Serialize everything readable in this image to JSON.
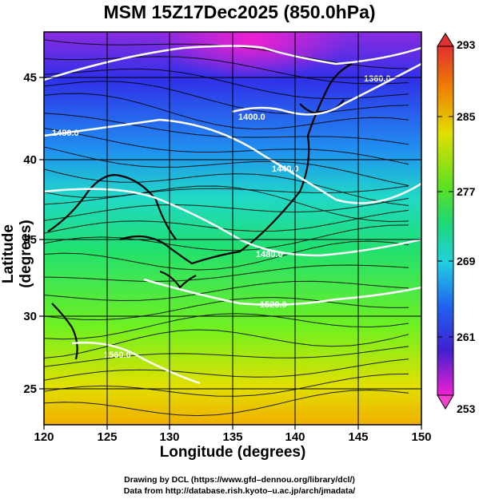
{
  "map": {
    "title": "MSM 15Z17Dec2025 (850.0hPa)",
    "xlabel": "Longitude (degrees)",
    "ylabel": "Latitude  (degrees)",
    "x_ticks": [
      "120",
      "125",
      "130",
      "135",
      "140",
      "145",
      "150"
    ],
    "y_ticks": [
      "25",
      "30",
      "35",
      "40",
      "45"
    ],
    "x_range": [
      120,
      150
    ],
    "y_range": [
      22.4,
      47.6
    ],
    "colorbar_ticks": [
      "293",
      "285",
      "277",
      "269",
      "261",
      "253"
    ],
    "colorbar_range": [
      253,
      293
    ],
    "contour_labels": [
      "1360.0",
      "1400.0",
      "1440.0",
      "1480.0",
      "1520.0",
      "1560.0",
      "1480.0"
    ],
    "credit_line1": "Drawing by DCL (https://www.gfd–dennou.org/library/dcl/)",
    "credit_line2": "Data from http://database.rish.kyoto–u.ac.jp/arch/jmadata/",
    "colors": {
      "background_gradient": [
        "#e020e0",
        "#2020f0",
        "#20d0e0",
        "#20e060",
        "#a0f000",
        "#f0d000",
        "#f07000"
      ],
      "contour": "#ffffff",
      "coast": "#000000"
    }
  }
}
